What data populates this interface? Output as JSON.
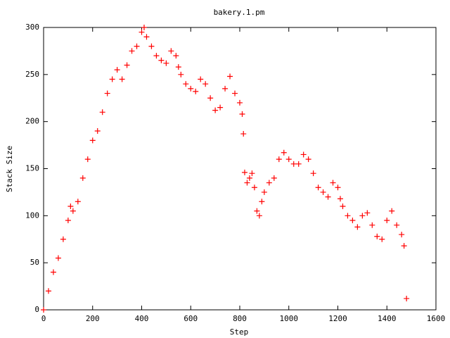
{
  "chart_data": {
    "type": "scatter",
    "title": "bakery.1.pm",
    "x_label": "Step",
    "y_label": "Stack Size",
    "color": "#ff0000",
    "x": [
      0,
      20,
      40,
      60,
      80,
      100,
      110,
      120,
      140,
      160,
      180,
      200,
      220,
      240,
      260,
      280,
      300,
      320,
      340,
      360,
      380,
      400,
      410,
      420,
      440,
      460,
      480,
      500,
      520,
      540,
      550,
      560,
      580,
      600,
      620,
      640,
      660,
      680,
      700,
      720,
      740,
      760,
      780,
      800,
      810,
      815,
      820,
      830,
      840,
      850,
      860,
      870,
      880,
      890,
      900,
      920,
      940,
      960,
      980,
      1000,
      1020,
      1040,
      1060,
      1080,
      1100,
      1120,
      1140,
      1160,
      1180,
      1200,
      1210,
      1220,
      1240,
      1260,
      1280,
      1300,
      1320,
      1340,
      1360,
      1380,
      1400,
      1420,
      1440,
      1460,
      1470,
      1480
    ],
    "values": [
      0,
      20,
      40,
      55,
      75,
      95,
      110,
      105,
      115,
      140,
      160,
      180,
      190,
      210,
      230,
      245,
      255,
      245,
      260,
      275,
      280,
      295,
      300,
      290,
      280,
      270,
      265,
      262,
      275,
      270,
      258,
      250,
      240,
      235,
      232,
      245,
      240,
      225,
      212,
      215,
      235,
      248,
      230,
      220,
      208,
      187,
      146,
      135,
      140,
      145,
      130,
      105,
      100,
      115,
      125,
      135,
      140,
      160,
      167,
      160,
      155,
      155,
      165,
      160,
      145,
      130,
      125,
      120,
      135,
      130,
      118,
      110,
      100,
      95,
      88,
      100,
      103,
      90,
      78,
      75,
      95,
      105,
      90,
      80,
      68,
      12
    ],
    "xlim": [
      0,
      1600
    ],
    "xticks": [
      0,
      200,
      400,
      600,
      800,
      1000,
      1200,
      1400,
      1600
    ],
    "ylim": [
      0,
      300
    ],
    "yticks": [
      0,
      50,
      100,
      150,
      200,
      250,
      300
    ]
  }
}
